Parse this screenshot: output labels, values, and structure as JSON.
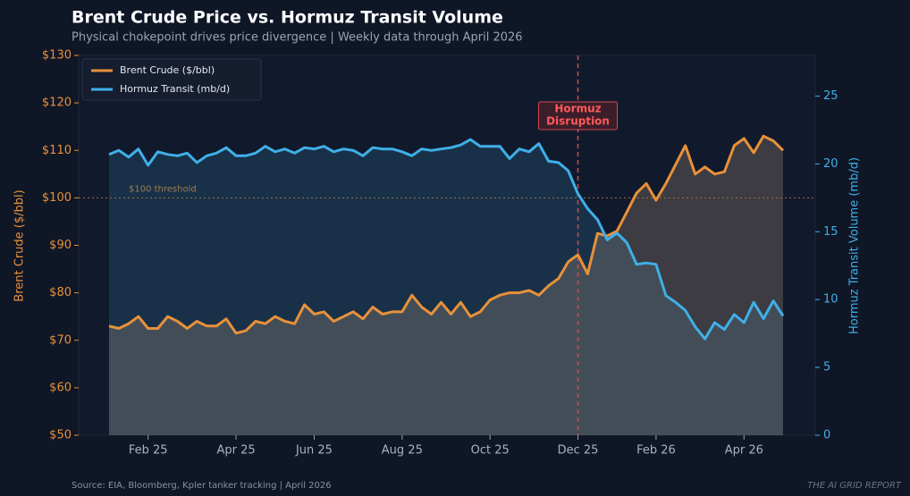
{
  "chart_data": {
    "type": "line",
    "title": "Brent Crude Price vs. Hormuz Transit Volume",
    "subtitle": "Physical chokepoint drives price divergence  |  Weekly data through April 2026",
    "source": "Source: EIA, Bloomberg, Kpler tanker tracking  |  April 2026",
    "watermark": "THE AI GRID REPORT",
    "ylabel": "Brent Crude ($/bbl)",
    "y2label": "Hormuz Transit Volume (mb/d)",
    "categories": [
      null,
      null,
      null,
      null,
      "Feb 25",
      null,
      null,
      null,
      null,
      null,
      null,
      null,
      null,
      "Apr 25",
      null,
      null,
      null,
      null,
      null,
      null,
      null,
      "Jun 25",
      null,
      null,
      null,
      null,
      null,
      null,
      null,
      null,
      "Aug 25",
      null,
      null,
      null,
      null,
      null,
      null,
      null,
      null,
      "Oct 25",
      null,
      null,
      null,
      null,
      null,
      null,
      null,
      null,
      "Dec 25",
      null,
      null,
      null,
      null,
      null,
      null,
      null,
      "Feb 26",
      null,
      null,
      null,
      null,
      null,
      null,
      null,
      null,
      "Apr 26",
      null,
      null,
      null,
      null
    ],
    "series": [
      {
        "name": "Brent Crude ($/bbl)",
        "color": "#e8913a",
        "values": [
          73,
          72.5,
          73.5,
          75,
          72.5,
          72.5,
          75,
          74,
          72.5,
          74,
          73,
          73,
          74.5,
          71.5,
          72,
          74,
          73.5,
          75,
          74,
          73.5,
          77.5,
          75.5,
          76,
          74,
          75,
          76,
          74.5,
          77,
          75.5,
          76,
          76,
          79.5,
          77,
          75.5,
          78,
          75.5,
          78,
          75,
          76,
          78.5,
          79.5,
          80,
          80,
          80.5,
          79.5,
          81.5,
          83,
          86.5,
          88,
          84,
          92.5,
          92,
          93,
          97,
          101,
          103,
          99.5,
          103,
          107,
          111,
          105,
          106.5,
          105,
          105.5,
          111,
          112.5,
          109.5,
          113,
          112,
          110
        ]
      },
      {
        "name": "Hormuz Transit (mb/d)",
        "color": "#3fb0e8",
        "axis": "y2",
        "values": [
          20.7,
          21,
          20.5,
          21.1,
          19.9,
          20.9,
          20.7,
          20.6,
          20.8,
          20.1,
          20.6,
          20.8,
          21.2,
          20.6,
          20.6,
          20.8,
          21.3,
          20.9,
          21.1,
          20.8,
          21.2,
          21.1,
          21.3,
          20.9,
          21.1,
          21,
          20.6,
          21.2,
          21.1,
          21.1,
          20.9,
          20.6,
          21.1,
          21,
          21.1,
          21.2,
          21.4,
          21.8,
          21.3,
          21.3,
          21.3,
          20.4,
          21.1,
          20.9,
          21.5,
          20.2,
          20.1,
          19.5,
          17.8,
          16.7,
          15.9,
          14.4,
          14.9,
          14.2,
          12.6,
          12.7,
          12.6,
          10.3,
          9.8,
          9.2,
          8.0,
          7.1,
          8.3,
          7.8,
          8.9,
          8.3,
          9.8,
          8.6,
          9.9,
          8.8
        ]
      }
    ],
    "ylim": [
      50,
      130
    ],
    "yticks": [
      {
        "value": 50,
        "label": "$50"
      },
      {
        "value": 60,
        "label": "$60"
      },
      {
        "value": 70,
        "label": "$70"
      },
      {
        "value": 80,
        "label": "$80"
      },
      {
        "value": 90,
        "label": "$90"
      },
      {
        "value": 100,
        "label": "$100"
      },
      {
        "value": 110,
        "label": "$110"
      },
      {
        "value": 120,
        "label": "$120"
      },
      {
        "value": 130,
        "label": "$130"
      }
    ],
    "y2lim": [
      0,
      28
    ],
    "y2ticks": [
      0,
      5,
      10,
      15,
      20,
      25
    ],
    "threshold": {
      "value": 100,
      "label": "$100 threshold"
    },
    "event": {
      "at": "Dec 25",
      "label": [
        "Hormuz",
        "Disruption"
      ]
    },
    "legend": "upper left"
  }
}
